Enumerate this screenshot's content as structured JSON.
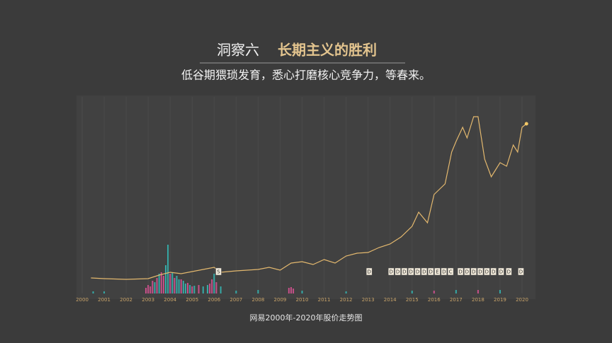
{
  "chart_data": {
    "type": "line",
    "title": "洞察六",
    "title_highlight": "长期主义的胜利",
    "subtitle": "低谷期猥琐发育，悉心打磨核心竞争力，等春来。",
    "caption": "网易2000年-2020年股价走势图",
    "xlim": [
      2000,
      2020
    ],
    "xticks": [
      2000,
      2001,
      2002,
      2003,
      2004,
      2005,
      2006,
      2007,
      2008,
      2009,
      2010,
      2011,
      2012,
      2013,
      2014,
      2015,
      2016,
      2017,
      2018,
      2019,
      2020
    ],
    "ylim": [
      0,
      265
    ],
    "y2lim": [
      0,
      265
    ],
    "grid": true,
    "series": [
      {
        "color": "#e3b86e",
        "x": [
          2000.4,
          2001,
          2002,
          2003,
          2003.5,
          2004,
          2004.5,
          2005,
          2005.5,
          2006,
          2006.3,
          2007,
          2008,
          2008.5,
          2009,
          2009.5,
          2010,
          2010.5,
          2011,
          2011.5,
          2012,
          2012.5,
          2013,
          2013.5,
          2014,
          2014.5,
          2015,
          2015.3,
          2015.7,
          2016,
          2016.5,
          2016.8,
          2017,
          2017.3,
          2017.5,
          2017.8,
          2018,
          2018.3,
          2018.6,
          2018.8,
          2019,
          2019.3,
          2019.6,
          2019.8,
          2020,
          2020.2
        ],
        "values": [
          22,
          21,
          20,
          21,
          26,
          30,
          28,
          31,
          34,
          37,
          30,
          32,
          34,
          37,
          33,
          43,
          45,
          41,
          48,
          43,
          53,
          57,
          58,
          65,
          70,
          80,
          95,
          115,
          100,
          140,
          155,
          200,
          215,
          235,
          220,
          250,
          250,
          190,
          165,
          175,
          185,
          180,
          210,
          200,
          235,
          240
        ]
      },
      {
        "color": "#c7508a",
        "axis": "y2",
        "x": [
          2002.9,
          2003.0,
          2003.1,
          2003.2,
          2003.4,
          2003.6,
          2003.7,
          2004.0,
          2004.2,
          2004.5,
          2004.8,
          2005.0,
          2005.3,
          2005.8,
          2005.9,
          2006.1,
          2009.4,
          2009.5,
          2009.6,
          2016,
          2018
        ],
        "values": [
          8,
          12,
          10,
          18,
          22,
          30,
          25,
          28,
          22,
          20,
          15,
          10,
          12,
          14,
          20,
          16,
          8,
          9,
          7,
          4,
          5
        ]
      },
      {
        "color": "#35a9a6",
        "axis": "y2",
        "x": [
          2000.5,
          2001,
          2003.3,
          2003.5,
          2003.8,
          2003.9,
          2004.1,
          2004.3,
          2004.4,
          2004.6,
          2004.7,
          2004.9,
          2005.1,
          2005.5,
          2005.7,
          2006.0,
          2006.3,
          2007,
          2008,
          2010,
          2012,
          2015,
          2017,
          2019
        ],
        "values": [
          3,
          3,
          16,
          28,
          40,
          69,
          30,
          25,
          20,
          18,
          14,
          12,
          11,
          10,
          12,
          28,
          10,
          4,
          5,
          4,
          3,
          4,
          5,
          5
        ]
      }
    ],
    "annotations": [
      {
        "x": 2006.2,
        "label": "S"
      },
      {
        "x": 2013.05,
        "label": "D"
      },
      {
        "x": 2014.05,
        "label": "D"
      },
      {
        "x": 2014.35,
        "label": "D"
      },
      {
        "x": 2014.65,
        "label": "D"
      },
      {
        "x": 2014.95,
        "label": "D"
      },
      {
        "x": 2015.25,
        "label": "D"
      },
      {
        "x": 2015.55,
        "label": "D"
      },
      {
        "x": 2015.85,
        "label": "D"
      },
      {
        "x": 2016.15,
        "label": "E"
      },
      {
        "x": 2016.45,
        "label": "D"
      },
      {
        "x": 2016.75,
        "label": "C"
      },
      {
        "x": 2017.2,
        "label": "D"
      },
      {
        "x": 2017.5,
        "label": "D"
      },
      {
        "x": 2017.8,
        "label": "D"
      },
      {
        "x": 2018.1,
        "label": "D"
      },
      {
        "x": 2018.4,
        "label": "D"
      },
      {
        "x": 2018.7,
        "label": "D"
      },
      {
        "x": 2019.05,
        "label": "D"
      },
      {
        "x": 2019.4,
        "label": "D"
      },
      {
        "x": 2019.95,
        "label": "D"
      }
    ]
  }
}
